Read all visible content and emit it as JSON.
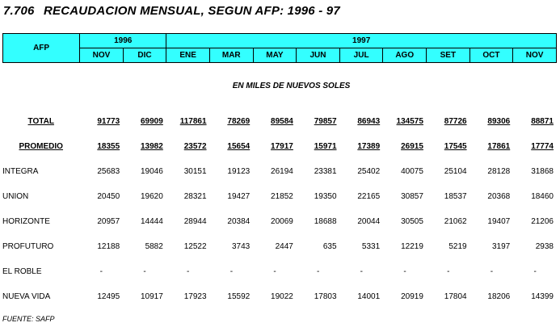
{
  "title": {
    "number": "7.706",
    "text": "RECAUDACION MENSUAL, SEGUN AFP: 1996 - 97"
  },
  "header": {
    "afp_label": "AFP",
    "years": [
      "1996",
      "1997"
    ],
    "months": [
      "NOV",
      "DIC",
      "ENE",
      "MAR",
      "MAY",
      "JUN",
      "JUL",
      "AGO",
      "SET",
      "OCT",
      "NOV"
    ]
  },
  "unit_note": "EN MILES DE NUEVOS SOLES",
  "rows": [
    {
      "label": "TOTAL",
      "values": [
        "91773",
        "69909",
        "117861",
        "78269",
        "89584",
        "79857",
        "86943",
        "134575",
        "87726",
        "89306",
        "88871"
      ]
    },
    {
      "label": "PROMEDIO",
      "values": [
        "18355",
        "13982",
        "23572",
        "15654",
        "17917",
        "15971",
        "17389",
        "26915",
        "17545",
        "17861",
        "17774"
      ]
    },
    {
      "label": "INTEGRA",
      "values": [
        "25683",
        "19046",
        "30151",
        "19123",
        "26194",
        "23381",
        "25402",
        "40075",
        "25104",
        "28128",
        "31868"
      ]
    },
    {
      "label": "UNION",
      "values": [
        "20450",
        "19620",
        "28321",
        "19427",
        "21852",
        "19350",
        "22165",
        "30857",
        "18537",
        "20368",
        "18460"
      ]
    },
    {
      "label": "HORIZONTE",
      "values": [
        "20957",
        "14444",
        "28944",
        "20384",
        "20069",
        "18688",
        "20044",
        "30505",
        "21062",
        "19407",
        "21206"
      ]
    },
    {
      "label": "PROFUTURO",
      "values": [
        "12188",
        "5882",
        "12522",
        "3743",
        "2447",
        "635",
        "5331",
        "12219",
        "5219",
        "3197",
        "2938"
      ]
    },
    {
      "label": "EL ROBLE",
      "values": [
        "-",
        "-",
        "-",
        "-",
        "-",
        "-",
        "-",
        "-",
        "-",
        "-",
        "-"
      ]
    },
    {
      "label": "NUEVA VIDA",
      "values": [
        "12495",
        "10917",
        "17923",
        "15592",
        "19022",
        "17803",
        "14001",
        "20919",
        "17804",
        "18206",
        "14399"
      ]
    }
  ],
  "source": "FUENTE: SAFP",
  "colors": {
    "header_bg": "#33ffff"
  }
}
